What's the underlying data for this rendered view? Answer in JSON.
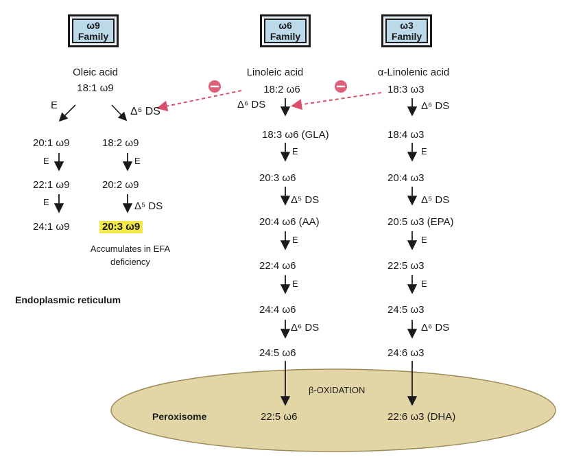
{
  "families": {
    "w9": {
      "symbol": "ω9",
      "label": "Family"
    },
    "w6": {
      "symbol": "ω6",
      "label": "Family"
    },
    "w3": {
      "symbol": "ω3",
      "label": "Family"
    }
  },
  "omega9": {
    "precursor": "Oleic acid",
    "start": "18:1 ω9",
    "elong_branch": [
      "20:1 ω9",
      "22:1 ω9",
      "24:1 ω9"
    ],
    "desat_branch": [
      "18:2 ω9",
      "20:2 ω9",
      "20:3 ω9"
    ],
    "note": [
      "Accumulates in EFA",
      "deficiency"
    ]
  },
  "omega6": {
    "precursor": "Linoleic acid",
    "steps": [
      "18:2 ω6",
      "18:3 ω6 (GLA)",
      "20:3 ω6",
      "20:4 ω6 (AA)",
      "22:4 ω6",
      "24:4 ω6",
      "24:5 ω6"
    ],
    "product": "22:5 ω6"
  },
  "omega3": {
    "precursor": "α-Linolenic acid",
    "steps": [
      "18:3 ω3",
      "18:4 ω3",
      "20:4 ω3",
      "20:5 ω3 (EPA)",
      "22:5 ω3",
      "24:5 ω3",
      "24:6 ω3"
    ],
    "product": "22:6 ω3 (DHA)"
  },
  "enzymes": {
    "elongase": "E",
    "d6": "Δ⁶ DS",
    "d5": "Δ⁵ DS"
  },
  "compartments": {
    "er": "Endoplasmic reticulum",
    "peroxisome": "Peroxisome",
    "beta_ox": "β-OXIDATION"
  },
  "colors": {
    "inhibition": "#e0607a",
    "highlight": "#f3e84a",
    "peroxisome_fill": "#e3d6a6",
    "box_fill": "#bcd9ea"
  }
}
